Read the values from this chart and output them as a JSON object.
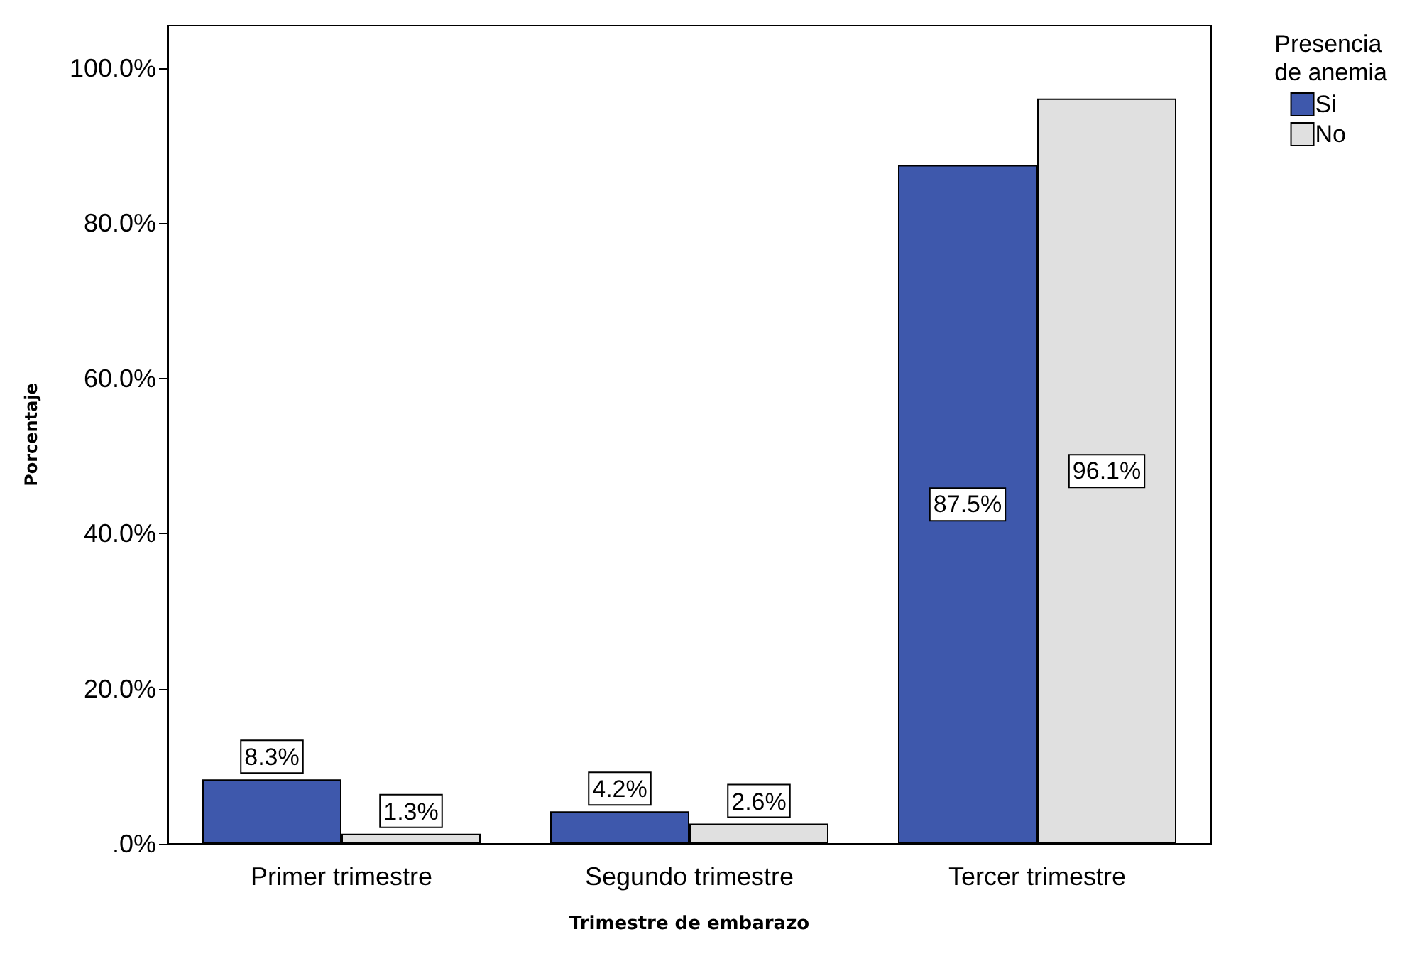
{
  "chart_data": {
    "type": "bar",
    "xlabel": "Trimestre de embarazo",
    "ylabel": "Porcentaje",
    "legend_title": "Presencia\nde anemia",
    "categories": [
      "Primer trimestre",
      "Segundo trimestre",
      "Tercer trimestre"
    ],
    "series": [
      {
        "name": "Si",
        "color": "#3e58ac",
        "values": [
          8.3,
          4.2,
          87.5
        ],
        "value_labels": [
          "8.3%",
          "4.2%",
          "87.5%"
        ]
      },
      {
        "name": "No",
        "color": "#e0e0e0",
        "values": [
          1.3,
          2.6,
          96.1
        ],
        "value_labels": [
          "1.3%",
          "2.6%",
          "96.1%"
        ]
      }
    ],
    "ylim": [
      0,
      105.5
    ],
    "yticks": [
      {
        "value": 0,
        "label": ".0%"
      },
      {
        "value": 20,
        "label": "20.0%"
      },
      {
        "value": 40,
        "label": "40.0%"
      },
      {
        "value": 60,
        "label": "60.0%"
      },
      {
        "value": 80,
        "label": "80.0%"
      },
      {
        "value": 100,
        "label": "100.0%"
      }
    ],
    "grid": false,
    "legend": "top right"
  }
}
